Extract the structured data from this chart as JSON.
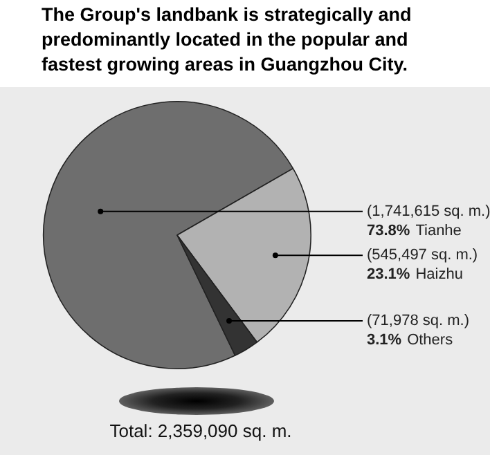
{
  "chart_data": {
    "type": "pie",
    "title": "The Group's landbank is strategically and predominantly located in the popular and fastest growing areas in Guangzhou City.",
    "categories": [
      "Tianhe",
      "Haizhu",
      "Others"
    ],
    "values": [
      1741615,
      545497,
      71978
    ],
    "colors": [
      "#6e6e6e",
      "#b2b2b2",
      "#333333"
    ],
    "value_labels": [
      "(1,741,615 sq. m.)\n73.8%",
      "(545,497 sq. m.)\n23.1%",
      "(71,978 sq. m.)\n3.1%"
    ],
    "legend": false,
    "annotations": [
      "Total: 2,359,090 sq. m."
    ]
  }
}
